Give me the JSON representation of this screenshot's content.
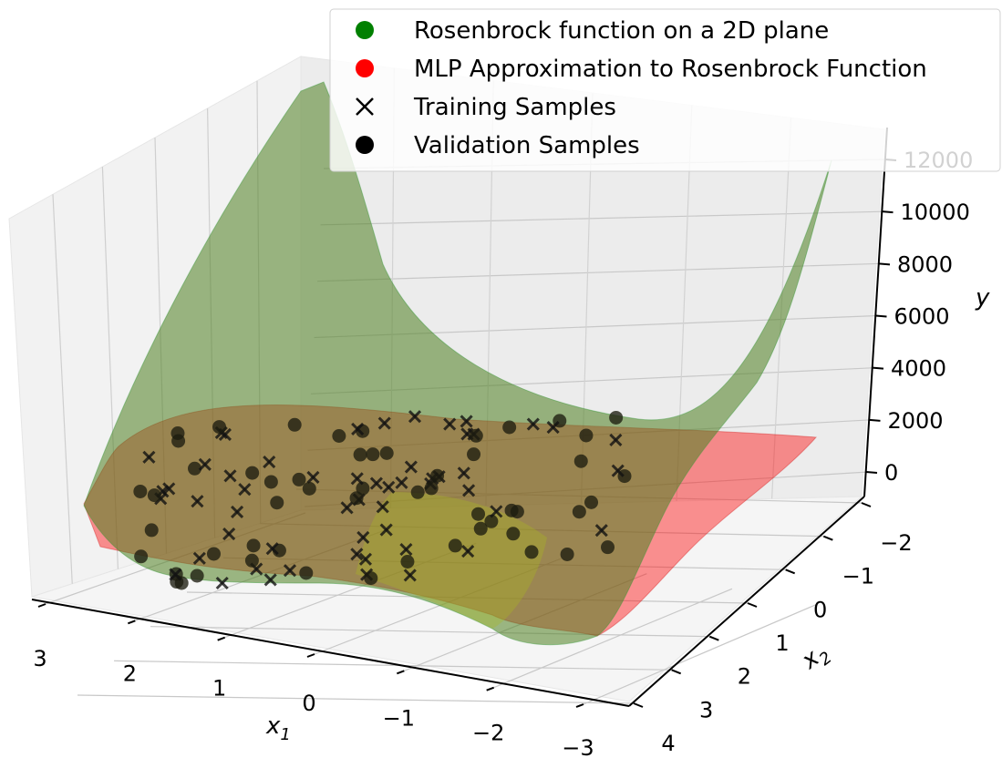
{
  "chart_data": {
    "type": "surface3d",
    "title": "",
    "axes": {
      "x1": {
        "label": "x",
        "subscript": "1",
        "ticks": [
          "3",
          "2",
          "1",
          "0",
          "−1",
          "−2",
          "−3"
        ],
        "range": [
          -3,
          3
        ]
      },
      "x2": {
        "label": "x",
        "subscript": "2",
        "ticks": [
          "−2",
          "−1",
          "0",
          "1",
          "2",
          "3",
          "4"
        ],
        "range": [
          -2,
          4
        ]
      },
      "y": {
        "label": "y",
        "ticks": [
          "0",
          "2000",
          "4000",
          "6000",
          "8000",
          "10000",
          "12000"
        ],
        "range": [
          0,
          12000
        ]
      }
    },
    "legend": {
      "placement": "top-right",
      "entries": [
        {
          "label": "Rosenbrock function on a 2D plane",
          "marker": "circle",
          "color": "#008000"
        },
        {
          "label": "MLP Approximation to Rosenbrock Function",
          "marker": "circle",
          "color": "#ff0000"
        },
        {
          "label": "Training Samples",
          "marker": "x",
          "color": "#000000"
        },
        {
          "label": "Validation Samples",
          "marker": "circle",
          "color": "#000000"
        }
      ]
    },
    "series": [
      {
        "name": "Rosenbrock function on a 2D plane",
        "kind": "surface",
        "function": "(1 - x1)^2 + 100*(x2 - x1^2)^2",
        "color": "#008000"
      },
      {
        "name": "MLP Approximation to Rosenbrock Function",
        "kind": "surface",
        "color": "#ff0000"
      },
      {
        "name": "Training Samples",
        "kind": "scatter",
        "marker": "x",
        "color": "#000000",
        "count": 55
      },
      {
        "name": "Validation Samples",
        "kind": "scatter",
        "marker": "circle",
        "color": "#000000",
        "count": 55
      }
    ],
    "grid": true,
    "pane_color": "#f2f2f2"
  }
}
